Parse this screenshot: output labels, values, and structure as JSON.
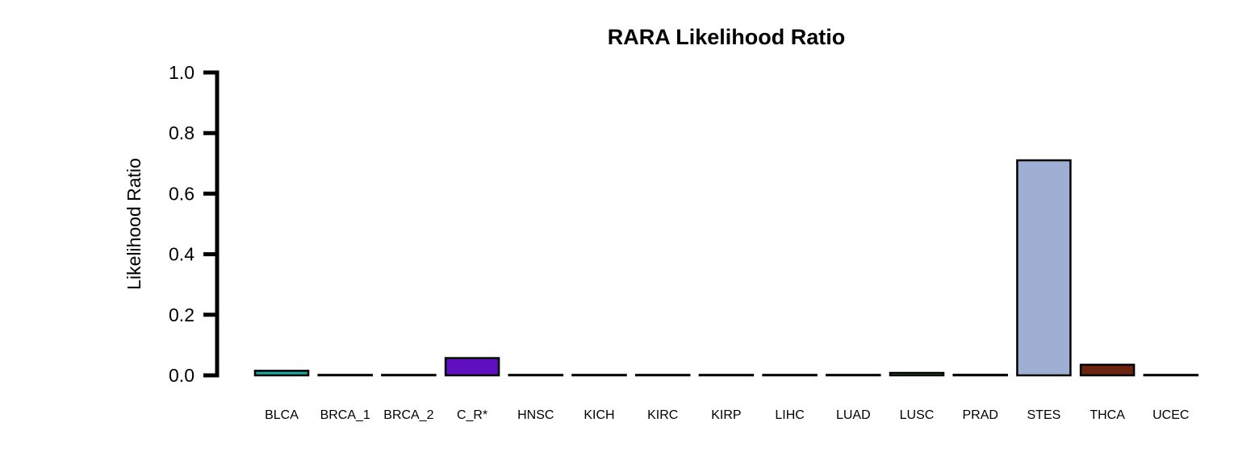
{
  "chart_data": {
    "type": "bar",
    "title": "RARA Likelihood Ratio",
    "xlabel": "",
    "ylabel": "Likelihood Ratio",
    "ylim": [
      0,
      1
    ],
    "yticks": [
      "0.0",
      "0.2",
      "0.4",
      "0.6",
      "0.8",
      "1.0"
    ],
    "grid": false,
    "legend": "none",
    "categories": [
      "BLCA",
      "BRCA_1",
      "BRCA_2",
      "C_R*",
      "HNSC",
      "KICH",
      "KIRC",
      "KIRP",
      "LIHC",
      "LUAD",
      "LUSC",
      "PRAD",
      "STES",
      "THCA",
      "UCEC"
    ],
    "values": [
      0.015,
      0.0,
      0.0,
      0.057,
      0.0,
      0.0,
      0.0,
      0.0,
      0.0,
      0.0,
      0.008,
      0.002,
      0.71,
      0.035,
      0.0
    ],
    "colors": [
      "#1aa7a0",
      "#e6b8c8",
      "#f0d060",
      "#5f0fc0",
      "#6a3d9a",
      "#e31a1c",
      "#fb9a99",
      "#a6cee3",
      "#1f78b4",
      "#b2df8a",
      "#33a02c",
      "#ff7f00",
      "#9fafd3",
      "#6b2410",
      "#cab2d6"
    ]
  }
}
